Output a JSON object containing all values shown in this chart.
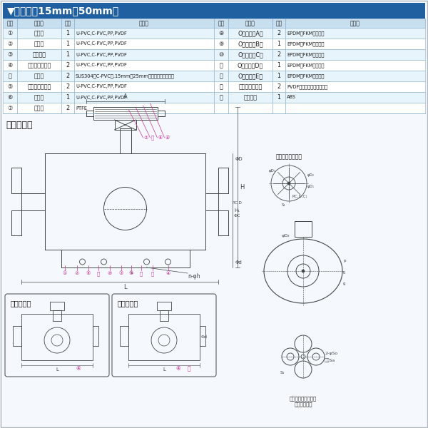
{
  "title": "▼部品表（15mm～50mm）",
  "title_bg": "#2060a0",
  "title_color": "#ffffff",
  "header_bg": "#c8dff0",
  "row_bg_alt": "#e8f4fc",
  "row_bg_norm": "#ffffff",
  "border_color": "#8ab0cc",
  "table_header_left": [
    "部番",
    "名　称",
    "個数",
    "材　質"
  ],
  "table_header_right": [
    "部番",
    "名　称",
    "個数",
    "材　質"
  ],
  "left_rows": [
    [
      "①",
      "ボディ",
      "1",
      "U-PVC,C-PVC,PP,PVDF"
    ],
    [
      "②",
      "ボール",
      "1",
      "U-PVC,C-PVC,PP,PVDF"
    ],
    [
      "③",
      "ユニオン",
      "1",
      "U-PVC,C-PVC,PP,PVDF"
    ],
    [
      "④",
      "ボディキャップ",
      "2",
      "U-PVC,C-PVC,PP,PVDF"
    ],
    [
      "⑪",
      "リング",
      "2",
      "SUS304（C-PVC製.15mm〖25mmには嵌込みに対応）"
    ],
    [
      "⑤",
      "キャップナット",
      "2",
      "U-PVC,C-PVC,PP,PVDF"
    ],
    [
      "⑥",
      "ステム",
      "1",
      "U-PVC,C-PVC,PP,PVDF"
    ],
    [
      "⑦",
      "シート",
      "2",
      "PTFE"
    ]
  ],
  "right_rows": [
    [
      "⑧",
      "Oリング（A）",
      "2",
      "EPDM、FKM、その他"
    ],
    [
      "⑨",
      "Oリング（B）",
      "1",
      "EPDM、FKM、その他"
    ],
    [
      "⑩",
      "Oリング（C）",
      "2",
      "EPDM、FKM、その他"
    ],
    [
      "⑪",
      "Oリング（D）",
      "1",
      "EPDM、FKM、その他"
    ],
    [
      "⑫",
      "Oリング（E）",
      "1",
      "EPDM、FKM、その他"
    ],
    [
      "⑬",
      "ストップリング",
      "2",
      "PVDF（フランジ形に使用）"
    ],
    [
      "⑭",
      "ハンドル",
      "1",
      "ABS"
    ],
    [
      "",
      "",
      "",
      ""
    ]
  ],
  "section_label": "フランジ形",
  "socket_label": "ソケット形",
  "screw_label": "ねじ込み形",
  "stem_label": "（ステム詳細図）",
  "insert_label1": "（エンザート金属）",
  "insert_label2": "取付穴部詳細",
  "bg_color": "#f5f8fc",
  "line_color": "#404848",
  "pink_color": "#cc3399",
  "dim_color": "#404848"
}
